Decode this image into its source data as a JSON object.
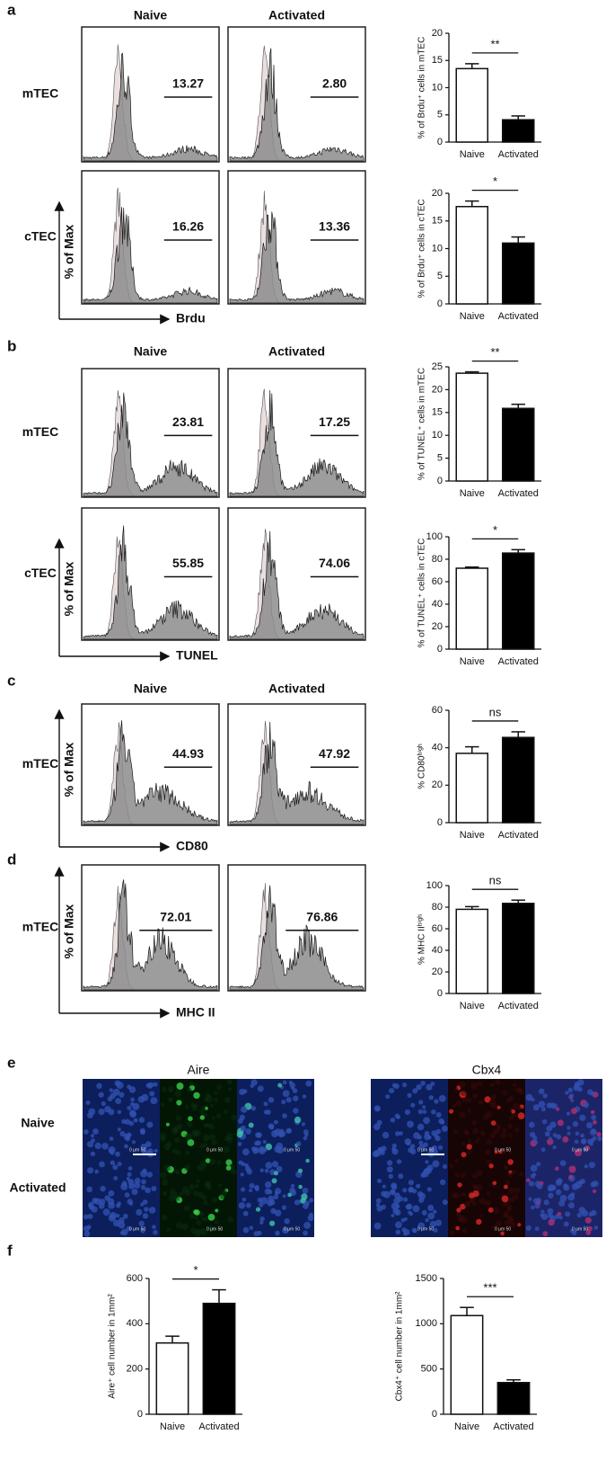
{
  "panels": {
    "a": {
      "letter": "a",
      "columns": [
        "Naive",
        "Activated"
      ],
      "rows": [
        {
          "label": "mTEC",
          "gates": [
            "13.27",
            "2.80"
          ]
        },
        {
          "label": "cTEC",
          "gates": [
            "16.26",
            "13.36"
          ]
        }
      ],
      "y_axis_label": "% of Max",
      "x_axis_label": "Brdu"
    },
    "b": {
      "letter": "b",
      "columns": [
        "Naive",
        "Activated"
      ],
      "rows": [
        {
          "label": "mTEC",
          "gates": [
            "23.81",
            "17.25"
          ]
        },
        {
          "label": "cTEC",
          "gates": [
            "55.85",
            "74.06"
          ]
        }
      ],
      "y_axis_label": "% of Max",
      "x_axis_label": "TUNEL"
    },
    "c": {
      "letter": "c",
      "columns": [
        "Naive",
        "Activated"
      ],
      "rows": [
        {
          "label": "mTEC",
          "gates": [
            "44.93",
            "47.92"
          ]
        }
      ],
      "y_axis_label": "% of Max",
      "x_axis_label": "CD80"
    },
    "d": {
      "letter": "d",
      "rows": [
        {
          "label": "mTEC",
          "gates": [
            "72.01",
            "76.86"
          ]
        }
      ],
      "y_axis_label": "% of Max",
      "x_axis_label": "MHC II"
    },
    "e": {
      "letter": "e",
      "stains": [
        "Aire",
        "Cbx4"
      ],
      "rows": [
        "Naive",
        "Activated"
      ],
      "scale_bar_label": "0   μm   50"
    },
    "f": {
      "letter": "f"
    }
  },
  "chart_data": [
    {
      "type": "bar",
      "y_label": "% of Brdu⁺ cells in mTEC",
      "categories": [
        "Naive",
        "Activated"
      ],
      "values": [
        13.5,
        4.1
      ],
      "errors": [
        0.9,
        0.7
      ],
      "colors": [
        "#ffffff",
        "#000000"
      ],
      "ylim": [
        0,
        20
      ],
      "yticks": [
        0,
        5,
        10,
        15,
        20
      ],
      "significance": "**"
    },
    {
      "type": "bar",
      "y_label": "% of Brdu⁺ cells in cTEC",
      "categories": [
        "Naive",
        "Activated"
      ],
      "values": [
        17.6,
        11
      ],
      "errors": [
        1,
        1.1
      ],
      "colors": [
        "#ffffff",
        "#000000"
      ],
      "ylim": [
        0,
        20
      ],
      "yticks": [
        0,
        5,
        10,
        15,
        20
      ],
      "significance": "*"
    },
    {
      "type": "bar",
      "y_label": "% of TUNEL⁺ cells in mTEC",
      "categories": [
        "Naive",
        "Activated"
      ],
      "values": [
        23.6,
        15.9
      ],
      "errors": [
        0.3,
        0.9
      ],
      "colors": [
        "#ffffff",
        "#000000"
      ],
      "ylim": [
        0,
        25
      ],
      "yticks": [
        0,
        5,
        10,
        15,
        20,
        25
      ],
      "significance": "**"
    },
    {
      "type": "bar",
      "y_label": "% of TUNEL⁺ cells in cTEC",
      "categories": [
        "Naive",
        "Activated"
      ],
      "values": [
        72,
        85.5
      ],
      "errors": [
        1,
        3
      ],
      "colors": [
        "#ffffff",
        "#000000"
      ],
      "ylim": [
        0,
        100
      ],
      "yticks": [
        0,
        20,
        40,
        60,
        80,
        100
      ],
      "significance": "*"
    },
    {
      "type": "bar",
      "y_label": "% CD80ʰⁱᵍʰ",
      "categories": [
        "Naive",
        "Activated"
      ],
      "values": [
        37,
        45.5
      ],
      "errors": [
        3.5,
        3
      ],
      "colors": [
        "#ffffff",
        "#000000"
      ],
      "ylim": [
        0,
        60
      ],
      "yticks": [
        0,
        20,
        40,
        60
      ],
      "significance": "ns"
    },
    {
      "type": "bar",
      "y_label": "% MHC IIʰⁱᵍʰ",
      "categories": [
        "Naive",
        "Activated"
      ],
      "values": [
        78,
        83.5
      ],
      "errors": [
        2.5,
        3
      ],
      "colors": [
        "#ffffff",
        "#000000"
      ],
      "ylim": [
        0,
        100
      ],
      "yticks": [
        0,
        20,
        40,
        60,
        80,
        100
      ],
      "significance": "ns"
    },
    {
      "type": "bar",
      "y_label": "Aire⁺ cell number in 1mm²",
      "categories": [
        "Naive",
        "Activated"
      ],
      "values": [
        315,
        490
      ],
      "errors": [
        30,
        60
      ],
      "colors": [
        "#ffffff",
        "#000000"
      ],
      "ylim": [
        0,
        600
      ],
      "yticks": [
        0,
        200,
        400,
        600
      ],
      "significance": "*"
    },
    {
      "type": "bar",
      "y_label": "Cbx4⁺ cell number in 1mm²",
      "categories": [
        "Naive",
        "Activated"
      ],
      "values": [
        1090,
        350
      ],
      "errors": [
        90,
        30
      ],
      "colors": [
        "#ffffff",
        "#000000"
      ],
      "ylim": [
        0,
        1500
      ],
      "yticks": [
        0,
        500,
        1000,
        1500
      ],
      "significance": "***"
    }
  ]
}
